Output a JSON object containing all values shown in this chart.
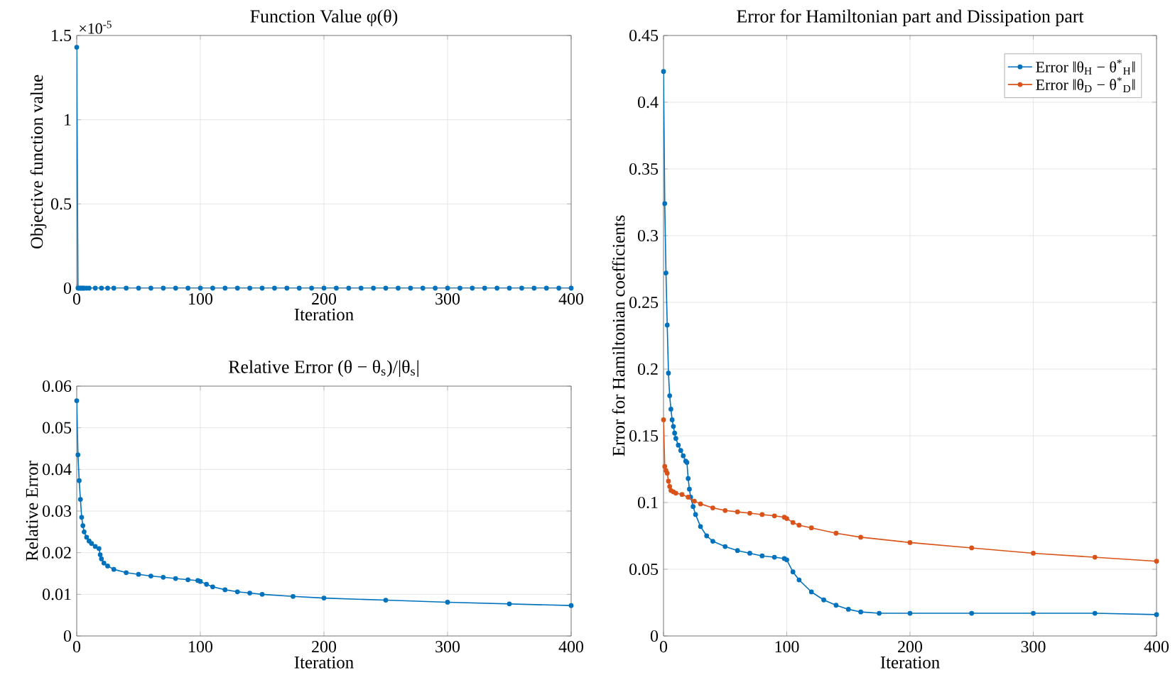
{
  "chart_data": [
    {
      "type": "line",
      "title": "Function Value φ(θ)",
      "xlabel": "Iteration",
      "ylabel": "Objective function value",
      "annotations": [
        "×10$^{-5}$"
      ],
      "xlim": [
        0,
        400
      ],
      "xticks": [
        0,
        100,
        200,
        300,
        400
      ],
      "ylim": [
        0,
        1.5
      ],
      "yticks": [
        0,
        0.5,
        1,
        1.5
      ],
      "grid": true,
      "marker": "circle",
      "line_style": "solid",
      "series": [
        {
          "color": "#0072bd",
          "x": [
            0,
            1,
            2,
            3,
            4,
            5,
            6,
            8,
            10,
            15,
            20,
            25,
            30,
            40,
            50,
            60,
            70,
            80,
            90,
            100,
            110,
            120,
            130,
            140,
            150,
            160,
            170,
            180,
            190,
            200,
            210,
            220,
            230,
            240,
            250,
            260,
            270,
            280,
            290,
            300,
            310,
            320,
            330,
            340,
            350,
            360,
            370,
            380,
            390,
            400
          ],
          "values": [
            1.43,
            0,
            0,
            0,
            0,
            0,
            0,
            0,
            0,
            0,
            0,
            0,
            0,
            0,
            0,
            0,
            0,
            0,
            0,
            0,
            0,
            0,
            0,
            0,
            0,
            0,
            0,
            0,
            0,
            0,
            0,
            0,
            0,
            0,
            0,
            0,
            0,
            0,
            0,
            0,
            0,
            0,
            0,
            0,
            0,
            0,
            0,
            0,
            0,
            0
          ]
        }
      ]
    },
    {
      "type": "line",
      "title": "Relative Error (θ − θ$_{s}$)/|θ$_{s}$|",
      "xlabel": "Iteration",
      "ylabel": "Relative Error",
      "xlim": [
        0,
        400
      ],
      "xticks": [
        0,
        100,
        200,
        300,
        400
      ],
      "ylim": [
        0,
        0.06
      ],
      "yticks": [
        0,
        0.01,
        0.02,
        0.03,
        0.04,
        0.05,
        0.06
      ],
      "grid": true,
      "marker": "circle",
      "line_style": "solid",
      "series": [
        {
          "color": "#0072bd",
          "x": [
            0,
            1,
            2,
            3,
            4,
            5,
            6,
            8,
            10,
            12,
            15,
            18,
            19,
            20,
            22,
            25,
            30,
            40,
            50,
            60,
            70,
            80,
            90,
            98,
            100,
            105,
            110,
            120,
            130,
            140,
            150,
            175,
            200,
            250,
            300,
            350,
            400
          ],
          "values": [
            0.0565,
            0.0435,
            0.0373,
            0.0328,
            0.0285,
            0.0265,
            0.025,
            0.0237,
            0.0228,
            0.0222,
            0.0215,
            0.021,
            0.0195,
            0.0185,
            0.0175,
            0.0168,
            0.016,
            0.0152,
            0.0148,
            0.0144,
            0.0141,
            0.0138,
            0.0135,
            0.0133,
            0.0131,
            0.0124,
            0.0118,
            0.0111,
            0.0106,
            0.0103,
            0.01,
            0.0095,
            0.0091,
            0.0086,
            0.0081,
            0.0077,
            0.0073
          ]
        }
      ]
    },
    {
      "type": "line",
      "title": "Error for Hamiltonian part and Dissipation part",
      "xlabel": "Iteration",
      "ylabel": "Error for Hamiltonian coefficients",
      "xlim": [
        0,
        400
      ],
      "xticks": [
        0,
        100,
        200,
        300,
        400
      ],
      "ylim": [
        0,
        0.45
      ],
      "yticks": [
        0,
        0.05,
        0.1,
        0.15,
        0.2,
        0.25,
        0.3,
        0.35,
        0.4,
        0.45
      ],
      "grid": true,
      "marker": "circle",
      "line_style": "solid",
      "legend": "top right",
      "series": [
        {
          "name": "Error ‖θ$_{H}$ − θ$^{*}$$_{H}$‖",
          "color": "#0072bd",
          "x": [
            0,
            1,
            2,
            3,
            4,
            5,
            6,
            7,
            8,
            9,
            10,
            12,
            14,
            16,
            18,
            19,
            20,
            21,
            22,
            24,
            26,
            30,
            35,
            40,
            50,
            60,
            70,
            80,
            90,
            98,
            100,
            105,
            110,
            120,
            130,
            140,
            150,
            160,
            175,
            200,
            250,
            300,
            350,
            400
          ],
          "values": [
            0.423,
            0.324,
            0.272,
            0.233,
            0.197,
            0.18,
            0.17,
            0.162,
            0.157,
            0.152,
            0.148,
            0.143,
            0.139,
            0.135,
            0.131,
            0.13,
            0.118,
            0.11,
            0.104,
            0.097,
            0.091,
            0.082,
            0.075,
            0.071,
            0.067,
            0.064,
            0.062,
            0.06,
            0.059,
            0.058,
            0.057,
            0.048,
            0.042,
            0.033,
            0.027,
            0.023,
            0.02,
            0.018,
            0.017,
            0.017,
            0.017,
            0.017,
            0.017,
            0.016
          ]
        },
        {
          "name": "Error ‖θ$_{D}$ − θ$^{*}$$_{D}$‖",
          "color": "#d95319",
          "x": [
            0,
            1,
            2,
            3,
            4,
            5,
            6,
            8,
            10,
            15,
            20,
            25,
            30,
            40,
            50,
            60,
            70,
            80,
            90,
            98,
            100,
            105,
            110,
            120,
            140,
            160,
            200,
            250,
            300,
            350,
            400
          ],
          "values": [
            0.162,
            0.127,
            0.124,
            0.122,
            0.116,
            0.112,
            0.109,
            0.108,
            0.107,
            0.106,
            0.104,
            0.101,
            0.099,
            0.096,
            0.094,
            0.093,
            0.092,
            0.091,
            0.09,
            0.089,
            0.088,
            0.085,
            0.083,
            0.081,
            0.077,
            0.074,
            0.07,
            0.066,
            0.062,
            0.059,
            0.056
          ]
        }
      ]
    }
  ]
}
